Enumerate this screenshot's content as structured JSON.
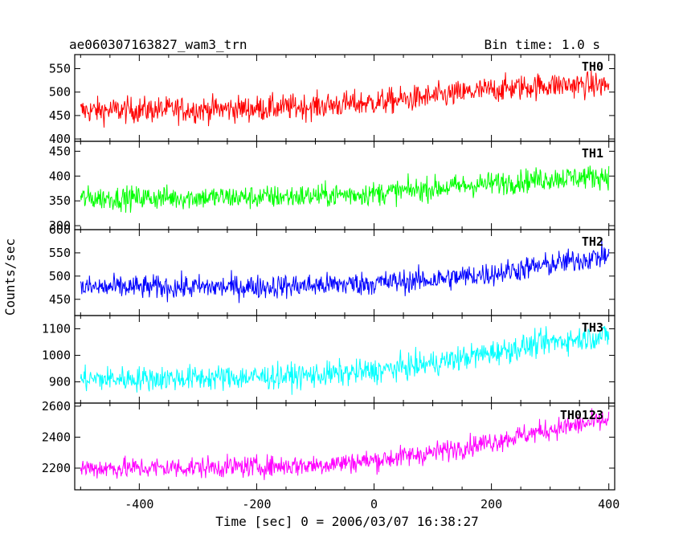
{
  "chart_data": {
    "type": "line",
    "title": "ae060307163827_wam3_trn",
    "subtitle": "Bin time: 1.0 s",
    "xlabel": "Time [sec] 0 = 2006/03/07 16:38:27",
    "ylabel": "Counts/sec",
    "xlim": [
      -510,
      410
    ],
    "xticks": [
      -400,
      -200,
      0,
      200,
      400
    ],
    "grid": false,
    "series": [
      {
        "name": "TH0",
        "color": "#ff0000",
        "ylim": [
          395,
          580
        ],
        "yticks": [
          400,
          450,
          500,
          550
        ],
        "x": [
          -500,
          -400,
          -300,
          -200,
          -100,
          0,
          100,
          200,
          300,
          400
        ],
        "values": [
          460,
          462,
          463,
          465,
          470,
          478,
          490,
          505,
          515,
          515
        ],
        "noise": 28
      },
      {
        "name": "TH1",
        "color": "#00ff00",
        "ylim": [
          292,
          470
        ],
        "yticks": [
          300,
          350,
          400,
          450
        ],
        "x": [
          -500,
          -400,
          -300,
          -200,
          -100,
          0,
          100,
          200,
          300,
          400
        ],
        "values": [
          355,
          356,
          357,
          357,
          360,
          365,
          375,
          385,
          395,
          400
        ],
        "noise": 24
      },
      {
        "name": "TH2",
        "color": "#0000ff",
        "ylim": [
          415,
          600
        ],
        "yticks": [
          450,
          500,
          550,
          600
        ],
        "x": [
          -500,
          -400,
          -300,
          -200,
          -100,
          0,
          100,
          200,
          300,
          400
        ],
        "values": [
          475,
          476,
          476,
          477,
          480,
          485,
          492,
          505,
          525,
          545
        ],
        "noise": 26
      },
      {
        "name": "TH3",
        "color": "#00ffff",
        "ylim": [
          820,
          1150
        ],
        "yticks": [
          900,
          1000,
          1100
        ],
        "x": [
          -500,
          -400,
          -300,
          -200,
          -100,
          0,
          100,
          200,
          300,
          400
        ],
        "values": [
          910,
          912,
          915,
          918,
          925,
          940,
          970,
          1010,
          1050,
          1075
        ],
        "noise": 48
      },
      {
        "name": "TH0123",
        "color": "#ff00ff",
        "ylim": [
          2060,
          2620
        ],
        "yticks": [
          2200,
          2400,
          2600
        ],
        "x": [
          -500,
          -400,
          -300,
          -200,
          -100,
          0,
          100,
          200,
          300,
          400
        ],
        "values": [
          2200,
          2200,
          2205,
          2210,
          2220,
          2250,
          2300,
          2370,
          2450,
          2510
        ],
        "noise": 70
      }
    ]
  }
}
